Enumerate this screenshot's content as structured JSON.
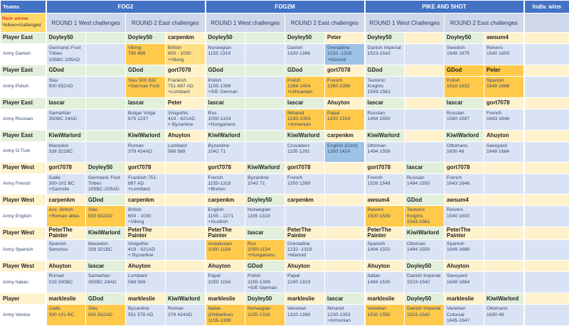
{
  "header": {
    "teams": "Teams",
    "sections": [
      "FOG2",
      "FOG2M",
      "PIKE AND SHOT"
    ],
    "indiv": "Indiv. wins"
  },
  "legend": {
    "line1": "Red= winner",
    "line2": "Yellow=challenged"
  },
  "round_headers": [
    "ROUND 1 West challenges",
    "ROUND 2 East challenges",
    "ROUND 1 West challenges",
    "ROUND 2 East challenges",
    "ROUND 1 West Challenges",
    "ROUND 2 East challenges"
  ],
  "palette": {
    "headerBlue": "#4472C4",
    "roundHdr": "#CFD8EA",
    "legendYellow": "#FFD966",
    "green": "#E2EFDA",
    "cream": "#FFF2CC",
    "armyBlue": "#DAE3F3",
    "orange": "#FFC94A",
    "orangeMed": "#FFDF84",
    "orangePale": "#FFEBAE",
    "hlBlue": "#9DC3E6",
    "red": "#C00000",
    "darkRed": "#8A4012",
    "greenText": "#53803E"
  },
  "rows": [
    {
      "label": "Player East",
      "lbg": "g",
      "type": "player",
      "cells": [
        [
          "g",
          "Doyley50"
        ],
        [
          "g",
          ""
        ],
        [
          "g",
          "Doyley50"
        ],
        [
          "c",
          "carpenkm"
        ],
        [
          "g",
          "Doyley50"
        ],
        [
          "g",
          ""
        ],
        [
          "g",
          "Doyley50"
        ],
        [
          "c",
          "Peter"
        ],
        [
          "g",
          "Doyley50"
        ],
        [
          "c",
          ""
        ],
        [
          "g",
          "Doyley50"
        ],
        [
          "c",
          "awsum4"
        ],
        [
          "c",
          ""
        ]
      ]
    },
    {
      "label": "Army Danish",
      "lbg": "w",
      "type": "army",
      "cells": [
        [
          "b",
          "Germanic Foot\nTribes\n105BC-205AD",
          "n"
        ],
        [
          "b",
          ""
        ],
        [
          "o",
          "Viking\n790 899"
        ],
        [
          "m",
          "British\n600 - 1030\n+Viking"
        ],
        [
          "b",
          "Norwegian\n1155 1319"
        ],
        [
          "b",
          ""
        ],
        [
          "b",
          "Danish\n1320 1396"
        ],
        [
          "B",
          "Grenadine\n1232 -1319\n+Marinid",
          "d"
        ],
        [
          "b",
          "Danish Imperial\n1523-1542"
        ],
        [
          "b",
          ""
        ],
        [
          "b",
          "Swedish\n1649 1675"
        ],
        [
          "b",
          "Reivers\n1540 1603"
        ],
        [
          "b",
          ""
        ]
      ]
    },
    {
      "label": "Player East",
      "lbg": "g",
      "type": "player",
      "cells": [
        [
          "g",
          "GDod"
        ],
        [
          "g",
          ""
        ],
        [
          "g",
          "GDod"
        ],
        [
          "c",
          "gort7078"
        ],
        [
          "g",
          "GDod"
        ],
        [
          "g",
          ""
        ],
        [
          "g",
          "GDod"
        ],
        [
          "c",
          "gort7078"
        ],
        [
          "g",
          "GDod"
        ],
        [
          "c",
          ""
        ],
        [
          "o",
          "GDod"
        ],
        [
          "o",
          "Peter"
        ],
        [
          "c",
          ""
        ]
      ]
    },
    {
      "label": "Army Polish",
      "lbg": "w",
      "type": "army",
      "cells": [
        [
          "b",
          "Slav\n500 832AD"
        ],
        [
          "b",
          ""
        ],
        [
          "o",
          "Slav 500 832\n+German Foot"
        ],
        [
          "p",
          "Frankish\n751-887 AD\n+Lombard"
        ],
        [
          "b",
          "Polish\n1155-1399\n+S/E German"
        ],
        [
          "b",
          ""
        ],
        [
          "o",
          "Polish\n1386-1454\n+Lithuanian"
        ],
        [
          "o",
          "French\n1350-1399"
        ],
        [
          "b",
          "Teutonic\nKnights\n1543-1561",
          "d"
        ],
        [
          "b",
          ""
        ],
        [
          "o",
          "Polish\n1618 1632"
        ],
        [
          "o",
          "Spanish\n1649 1688"
        ],
        [
          "b",
          ""
        ]
      ]
    },
    {
      "label": "Player East",
      "lbg": "g",
      "type": "player",
      "cells": [
        [
          "g",
          "lascar"
        ],
        [
          "g",
          ""
        ],
        [
          "g",
          "lascar"
        ],
        [
          "c",
          "Peter"
        ],
        [
          "g",
          "lascar"
        ],
        [
          "g",
          ""
        ],
        [
          "g",
          "lascar"
        ],
        [
          "c",
          "Ahuyton"
        ],
        [
          "g",
          "lascar"
        ],
        [
          "c",
          ""
        ],
        [
          "g",
          "lascar"
        ],
        [
          "c",
          "gort7078"
        ],
        [
          "c",
          ""
        ]
      ]
    },
    {
      "label": "Army Russian",
      "lbg": "w",
      "type": "army",
      "cells": [
        [
          "b",
          "Samartian\n350BC 24AD"
        ],
        [
          "b",
          ""
        ],
        [
          "b",
          "Bulgar Volga\n675 1237"
        ],
        [
          "b",
          "Visigothic\n419 - 621AD\n+ Byzantine"
        ],
        [
          "b",
          "Rus\n1050-1154\n+Hungarians"
        ],
        [
          "b",
          ""
        ],
        [
          "o",
          "Ilkhanid\n1230-1353\n+Armenian",
          "d"
        ],
        [
          "o",
          "Papal\n1200 1319"
        ],
        [
          "b",
          "Russian\n1494 1550"
        ],
        [
          "b",
          ""
        ],
        [
          "b",
          "Russian\n1560 1597"
        ],
        [
          "b",
          "French\n1643 1648"
        ],
        [
          "b",
          ""
        ]
      ]
    },
    {
      "label": "Player East",
      "lbg": "g",
      "type": "player",
      "cells": [
        [
          "g",
          "KiwiWarlord"
        ],
        [
          "g",
          ""
        ],
        [
          "g",
          "KiwiWarlord"
        ],
        [
          "c",
          "Ahuyton"
        ],
        [
          "g",
          "KiwiWarlord"
        ],
        [
          "g",
          ""
        ],
        [
          "g",
          "KiwiWarlord"
        ],
        [
          "c",
          "carpenkm"
        ],
        [
          "g",
          "KiwiWarlord"
        ],
        [
          "c",
          ""
        ],
        [
          "g",
          "KiwiWarlord"
        ],
        [
          "c",
          "Ahuyton"
        ],
        [
          "c",
          ""
        ]
      ]
    },
    {
      "label": "Army O.Turk",
      "lbg": "w",
      "type": "army",
      "cells": [
        [
          "b",
          "Macedon\n328 321BC"
        ],
        [
          "b",
          ""
        ],
        [
          "b",
          "Roman\n379 424AD"
        ],
        [
          "b",
          "Lombard\n568 569"
        ],
        [
          "b",
          "Byzantine\n1042 71"
        ],
        [
          "b",
          ""
        ],
        [
          "b",
          "Crusaders\n1155 1291"
        ],
        [
          "B",
          "English (Cont)\n1350 1414"
        ],
        [
          "b",
          "Ottoman\n1494 1559"
        ],
        [
          "b",
          ""
        ],
        [
          "b",
          "Ottomans\n1630 48"
        ],
        [
          "b",
          "Savoyard\n1649 1684"
        ],
        [
          "b",
          ""
        ]
      ]
    },
    {
      "label": "Player West",
      "lbg": "c",
      "type": "player",
      "cells": [
        [
          "c",
          "gort7078"
        ],
        [
          "g",
          "Doyley50"
        ],
        [
          "c",
          "gort7078"
        ],
        [
          "c",
          ""
        ],
        [
          "c",
          "gort7078"
        ],
        [
          "g",
          "KiwiWarlord"
        ],
        [
          "c",
          "gort7078"
        ],
        [
          "c",
          ""
        ],
        [
          "c",
          "gort7078"
        ],
        [
          "g",
          "lascar"
        ],
        [
          "c",
          "gort7078"
        ],
        [
          "c",
          ""
        ],
        [
          "c",
          ""
        ]
      ]
    },
    {
      "label": "Army French",
      "lbg": "w",
      "type": "army",
      "cells": [
        [
          "b",
          "Gallic\n300-101 BC\n+Samnite"
        ],
        [
          "b",
          "Germanic Foot\nTribes\n105BC-205AD",
          "n"
        ],
        [
          "b",
          "Frankish 751-\n887 AD\n+Lombard"
        ],
        [
          "b",
          ""
        ],
        [
          "b",
          "French\n1155-1319\n+Breton"
        ],
        [
          "b",
          "Byzantine\n1042 71"
        ],
        [
          "b",
          "French\n1350 1399"
        ],
        [
          "b",
          ""
        ],
        [
          "b",
          "French\n1526 1549"
        ],
        [
          "b",
          "Russian\n1494 1550"
        ],
        [
          "b",
          "French\n1643 1648"
        ],
        [
          "b",
          ""
        ],
        [
          "b",
          ""
        ]
      ]
    },
    {
      "label": "Player West",
      "lbg": "c",
      "type": "player",
      "cells": [
        [
          "c",
          "carpenkm"
        ],
        [
          "g",
          "GDod"
        ],
        [
          "c",
          "carpenkm"
        ],
        [
          "c",
          ""
        ],
        [
          "c",
          "carpenkm"
        ],
        [
          "g",
          "Doyley50"
        ],
        [
          "c",
          "carpenkm"
        ],
        [
          "c",
          ""
        ],
        [
          "c",
          "awsum4"
        ],
        [
          "g",
          "GDod"
        ],
        [
          "c",
          "awsum4"
        ],
        [
          "c",
          ""
        ],
        [
          "c",
          ""
        ]
      ]
    },
    {
      "label": "Army English",
      "lbg": "w",
      "type": "army",
      "cells": [
        [
          "o",
          "Anc. British\n+Roman allies"
        ],
        [
          "o",
          "Slav\n500 832AD"
        ],
        [
          "b",
          "British\n600 - 1030\n+Viking"
        ],
        [
          "b",
          ""
        ],
        [
          "b",
          "English\n1155 - 1271\n+Scottish"
        ],
        [
          "b",
          "Norwegian\n1155 1319"
        ],
        [
          "b",
          ""
        ],
        [
          "b",
          ""
        ],
        [
          "o",
          "Reivers\n1500 1539"
        ],
        [
          "o",
          "Teutonic\nKnights\n1543-1561",
          "r"
        ],
        [
          "b",
          "Reivers\n1540 1603"
        ],
        [
          "b",
          ""
        ],
        [
          "b",
          ""
        ]
      ]
    },
    {
      "label": "Player West",
      "lbg": "c",
      "type": "player",
      "cells": [
        [
          "c",
          "PeterThe Painter"
        ],
        [
          "g",
          "KiwiWarlord"
        ],
        [
          "c",
          "PeterThe Painter"
        ],
        [
          "c",
          ""
        ],
        [
          "c",
          "PeterThe Painter"
        ],
        [
          "g",
          "lascar"
        ],
        [
          "c",
          "PeterThe Painter"
        ],
        [
          "c",
          ""
        ],
        [
          "c",
          "PeterThe Painter"
        ],
        [
          "g",
          "KiwiWarlord"
        ],
        [
          "c",
          "PeterThe Painter"
        ],
        [
          "c",
          ""
        ],
        [
          "c",
          ""
        ]
      ]
    },
    {
      "label": "Army Spanish",
      "lbg": "w",
      "type": "army",
      "cells": [
        [
          "b",
          "Spanish\nSertorius"
        ],
        [
          "b",
          "Macedon\n328 321BC"
        ],
        [
          "b",
          "Visigothic\n419 - 621AD\n+ Byzantine"
        ],
        [
          "b",
          ""
        ],
        [
          "o",
          "Andalusian\n1050 1154"
        ],
        [
          "o",
          "Rus\n1050-1154\n+Hungarians"
        ],
        [
          "b",
          "Grenadine\n1232 -1319\n+Marinid",
          "d"
        ],
        [
          "b",
          ""
        ],
        [
          "b",
          "Spanish\n1494 1502"
        ],
        [
          "b",
          "Ottoman\n1494 1559"
        ],
        [
          "b",
          "Spanish\n1649 1688"
        ],
        [
          "b",
          ""
        ],
        [
          "b",
          ""
        ]
      ]
    },
    {
      "label": "Player West",
      "lbg": "c",
      "type": "player",
      "cells": [
        [
          "c",
          "Ahuyton"
        ],
        [
          "g",
          "lascar"
        ],
        [
          "c",
          "Ahuyton"
        ],
        [
          "c",
          ""
        ],
        [
          "c",
          "Ahuyton"
        ],
        [
          "g",
          "GDod"
        ],
        [
          "c",
          "Ahuyton"
        ],
        [
          "c",
          ""
        ],
        [
          "c",
          "Ahuyton"
        ],
        [
          "g",
          "Doyley50"
        ],
        [
          "c",
          "Ahuyton"
        ],
        [
          "c",
          ""
        ],
        [
          "c",
          ""
        ]
      ]
    },
    {
      "label": "Army Italian",
      "lbg": "w",
      "type": "army",
      "cells": [
        [
          "b",
          "Roman\n219 200BC"
        ],
        [
          "b",
          "Samartian\n350BC 24AD"
        ],
        [
          "b",
          "Lombard\n568 569"
        ],
        [
          "b",
          ""
        ],
        [
          "b",
          "Papal\n1050 1154"
        ],
        [
          "b",
          "Polish\n1155-1399\n+S/E German"
        ],
        [
          "b",
          "Papal\n1200 1319"
        ],
        [
          "b",
          ""
        ],
        [
          "b",
          "Italian\n1494 1530"
        ],
        [
          "b",
          "Danish Imperial\n1523-1542"
        ],
        [
          "b",
          "Savoyard\n1649 1684"
        ],
        [
          "b",
          ""
        ],
        [
          "b",
          ""
        ]
      ]
    },
    {
      "label": "Player",
      "lbg": "c",
      "type": "player",
      "cells": [
        [
          "c",
          "markleslie"
        ],
        [
          "g",
          "GDod"
        ],
        [
          "c",
          "markleslie"
        ],
        [
          "g",
          "KiwiWarlord"
        ],
        [
          "c",
          "markleslie"
        ],
        [
          "g",
          "Doyley50"
        ],
        [
          "c",
          "markleslie"
        ],
        [
          "g",
          "lascar"
        ],
        [
          "c",
          "markleslie"
        ],
        [
          "g",
          "Doyley50"
        ],
        [
          "c",
          "markleslie"
        ],
        [
          "g",
          "KiwiWarlord"
        ],
        [
          "c",
          ""
        ]
      ]
    },
    {
      "label": "Army Venice",
      "lbg": "w",
      "type": "army",
      "cells": [
        [
          "o",
          "Gallic\n300 101 BC"
        ],
        [
          "o",
          "Slav\n500 832AD"
        ],
        [
          "b",
          "Byzantine\n551 578 AD"
        ],
        [
          "b",
          "Roman\n379 424AD"
        ],
        [
          "o",
          "Italian\n(Ghibelline)\n1155-1399",
          "d"
        ],
        [
          "o",
          "Norwegian\n1155 1319"
        ],
        [
          "b",
          "Venetian\n1320 1399"
        ],
        [
          "b",
          "Ilkhanid\n1230-1353\n+Armenian",
          "d"
        ],
        [
          "o",
          "Venetian\n1530 1550"
        ],
        [
          "o",
          "Danish Imperial\n1523-1542"
        ],
        [
          "b",
          "Venetian\nColonial\n1645-1647"
        ],
        [
          "b",
          "Ottomans\n1630 48"
        ],
        [
          "b",
          ""
        ]
      ]
    }
  ]
}
